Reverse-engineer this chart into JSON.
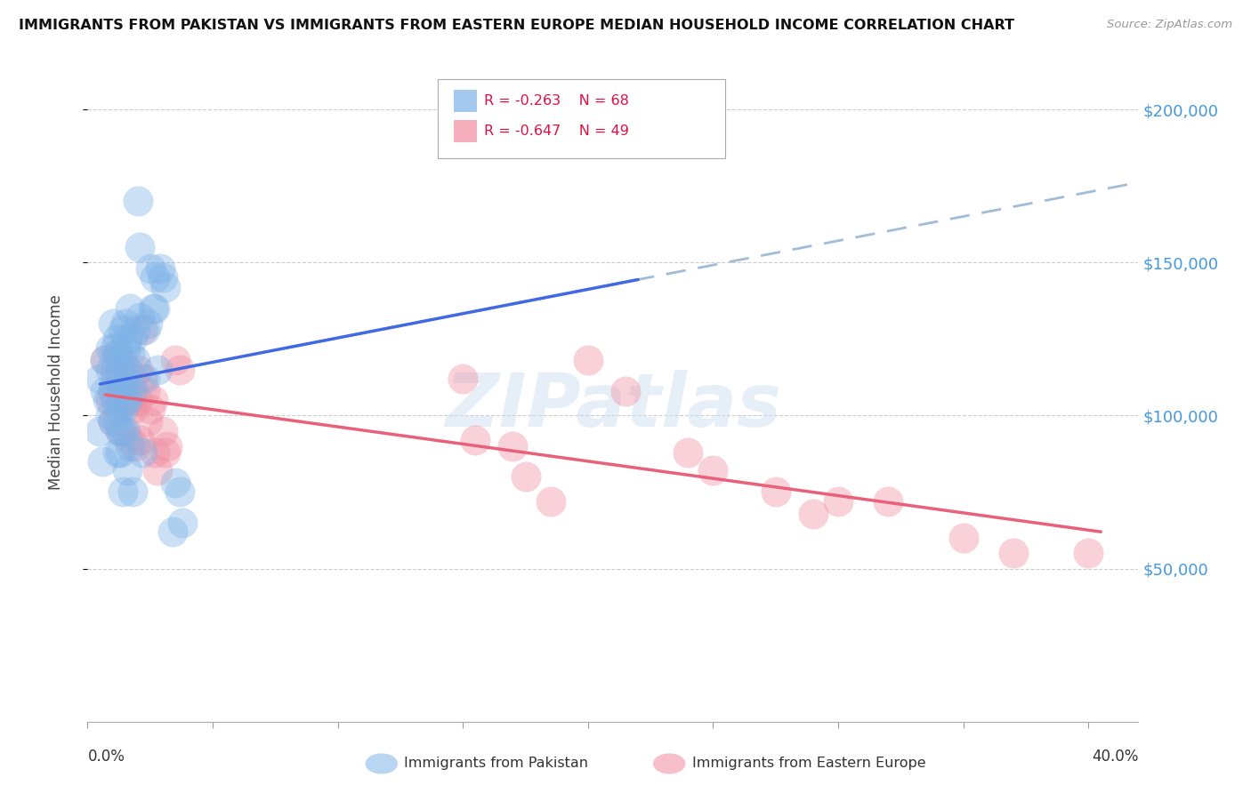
{
  "title": "IMMIGRANTS FROM PAKISTAN VS IMMIGRANTS FROM EASTERN EUROPE MEDIAN HOUSEHOLD INCOME CORRELATION CHART",
  "source": "Source: ZipAtlas.com",
  "ylabel": "Median Household Income",
  "ylim": [
    0,
    215000
  ],
  "xlim": [
    0.0,
    0.42
  ],
  "legend1_R": "-0.263",
  "legend1_N": "68",
  "legend2_R": "-0.647",
  "legend2_N": "49",
  "pakistan_color": "#7eb3e8",
  "eastern_europe_color": "#f08ca0",
  "trendline_pakistan_color": "#4169E1",
  "trendline_eastern_color": "#e8607a",
  "trendline_dashed_color": "#a0bcd8",
  "watermark": "ZIPatlas",
  "pakistan_scatter": [
    [
      0.005,
      112000
    ],
    [
      0.007,
      108000
    ],
    [
      0.007,
      118000
    ],
    [
      0.008,
      105000
    ],
    [
      0.009,
      100000
    ],
    [
      0.009,
      122000
    ],
    [
      0.009,
      115000
    ],
    [
      0.01,
      108000
    ],
    [
      0.01,
      98000
    ],
    [
      0.01,
      130000
    ],
    [
      0.011,
      122000
    ],
    [
      0.011,
      118000
    ],
    [
      0.011,
      112000
    ],
    [
      0.011,
      105000
    ],
    [
      0.012,
      98000
    ],
    [
      0.012,
      88000
    ],
    [
      0.012,
      125000
    ],
    [
      0.012,
      120000
    ],
    [
      0.013,
      115000
    ],
    [
      0.013,
      108000
    ],
    [
      0.013,
      102000
    ],
    [
      0.013,
      95000
    ],
    [
      0.013,
      88000
    ],
    [
      0.014,
      128000
    ],
    [
      0.014,
      118000
    ],
    [
      0.014,
      110000
    ],
    [
      0.014,
      102000
    ],
    [
      0.014,
      95000
    ],
    [
      0.014,
      75000
    ],
    [
      0.015,
      130000
    ],
    [
      0.015,
      122000
    ],
    [
      0.015,
      112000
    ],
    [
      0.015,
      105000
    ],
    [
      0.015,
      95000
    ],
    [
      0.016,
      82000
    ],
    [
      0.016,
      125000
    ],
    [
      0.016,
      115000
    ],
    [
      0.016,
      105000
    ],
    [
      0.017,
      135000
    ],
    [
      0.017,
      120000
    ],
    [
      0.017,
      110000
    ],
    [
      0.017,
      90000
    ],
    [
      0.018,
      125000
    ],
    [
      0.018,
      108000
    ],
    [
      0.018,
      75000
    ],
    [
      0.019,
      128000
    ],
    [
      0.019,
      118000
    ],
    [
      0.02,
      170000
    ],
    [
      0.021,
      155000
    ],
    [
      0.021,
      132000
    ],
    [
      0.022,
      88000
    ],
    [
      0.023,
      128000
    ],
    [
      0.023,
      112000
    ],
    [
      0.024,
      130000
    ],
    [
      0.025,
      148000
    ],
    [
      0.026,
      135000
    ],
    [
      0.027,
      145000
    ],
    [
      0.027,
      135000
    ],
    [
      0.028,
      115000
    ],
    [
      0.029,
      148000
    ],
    [
      0.03,
      145000
    ],
    [
      0.031,
      142000
    ],
    [
      0.034,
      62000
    ],
    [
      0.035,
      78000
    ],
    [
      0.037,
      75000
    ],
    [
      0.038,
      65000
    ],
    [
      0.005,
      95000
    ],
    [
      0.006,
      85000
    ]
  ],
  "eastern_scatter": [
    [
      0.007,
      118000
    ],
    [
      0.009,
      105000
    ],
    [
      0.01,
      108000
    ],
    [
      0.01,
      98000
    ],
    [
      0.011,
      115000
    ],
    [
      0.012,
      120000
    ],
    [
      0.012,
      102000
    ],
    [
      0.013,
      112000
    ],
    [
      0.013,
      95000
    ],
    [
      0.014,
      108000
    ],
    [
      0.015,
      105000
    ],
    [
      0.016,
      115000
    ],
    [
      0.017,
      105000
    ],
    [
      0.017,
      92000
    ],
    [
      0.018,
      112000
    ],
    [
      0.018,
      102000
    ],
    [
      0.019,
      90000
    ],
    [
      0.02,
      115000
    ],
    [
      0.02,
      105000
    ],
    [
      0.021,
      92000
    ],
    [
      0.022,
      128000
    ],
    [
      0.022,
      112000
    ],
    [
      0.023,
      108000
    ],
    [
      0.024,
      98000
    ],
    [
      0.025,
      102000
    ],
    [
      0.026,
      105000
    ],
    [
      0.027,
      88000
    ],
    [
      0.028,
      82000
    ],
    [
      0.03,
      95000
    ],
    [
      0.031,
      88000
    ],
    [
      0.032,
      90000
    ],
    [
      0.035,
      118000
    ],
    [
      0.037,
      115000
    ],
    [
      0.15,
      112000
    ],
    [
      0.155,
      92000
    ],
    [
      0.17,
      90000
    ],
    [
      0.175,
      80000
    ],
    [
      0.185,
      72000
    ],
    [
      0.2,
      118000
    ],
    [
      0.215,
      108000
    ],
    [
      0.24,
      88000
    ],
    [
      0.25,
      82000
    ],
    [
      0.275,
      75000
    ],
    [
      0.29,
      68000
    ],
    [
      0.3,
      72000
    ],
    [
      0.32,
      72000
    ],
    [
      0.35,
      60000
    ],
    [
      0.37,
      55000
    ],
    [
      0.4,
      55000
    ]
  ]
}
